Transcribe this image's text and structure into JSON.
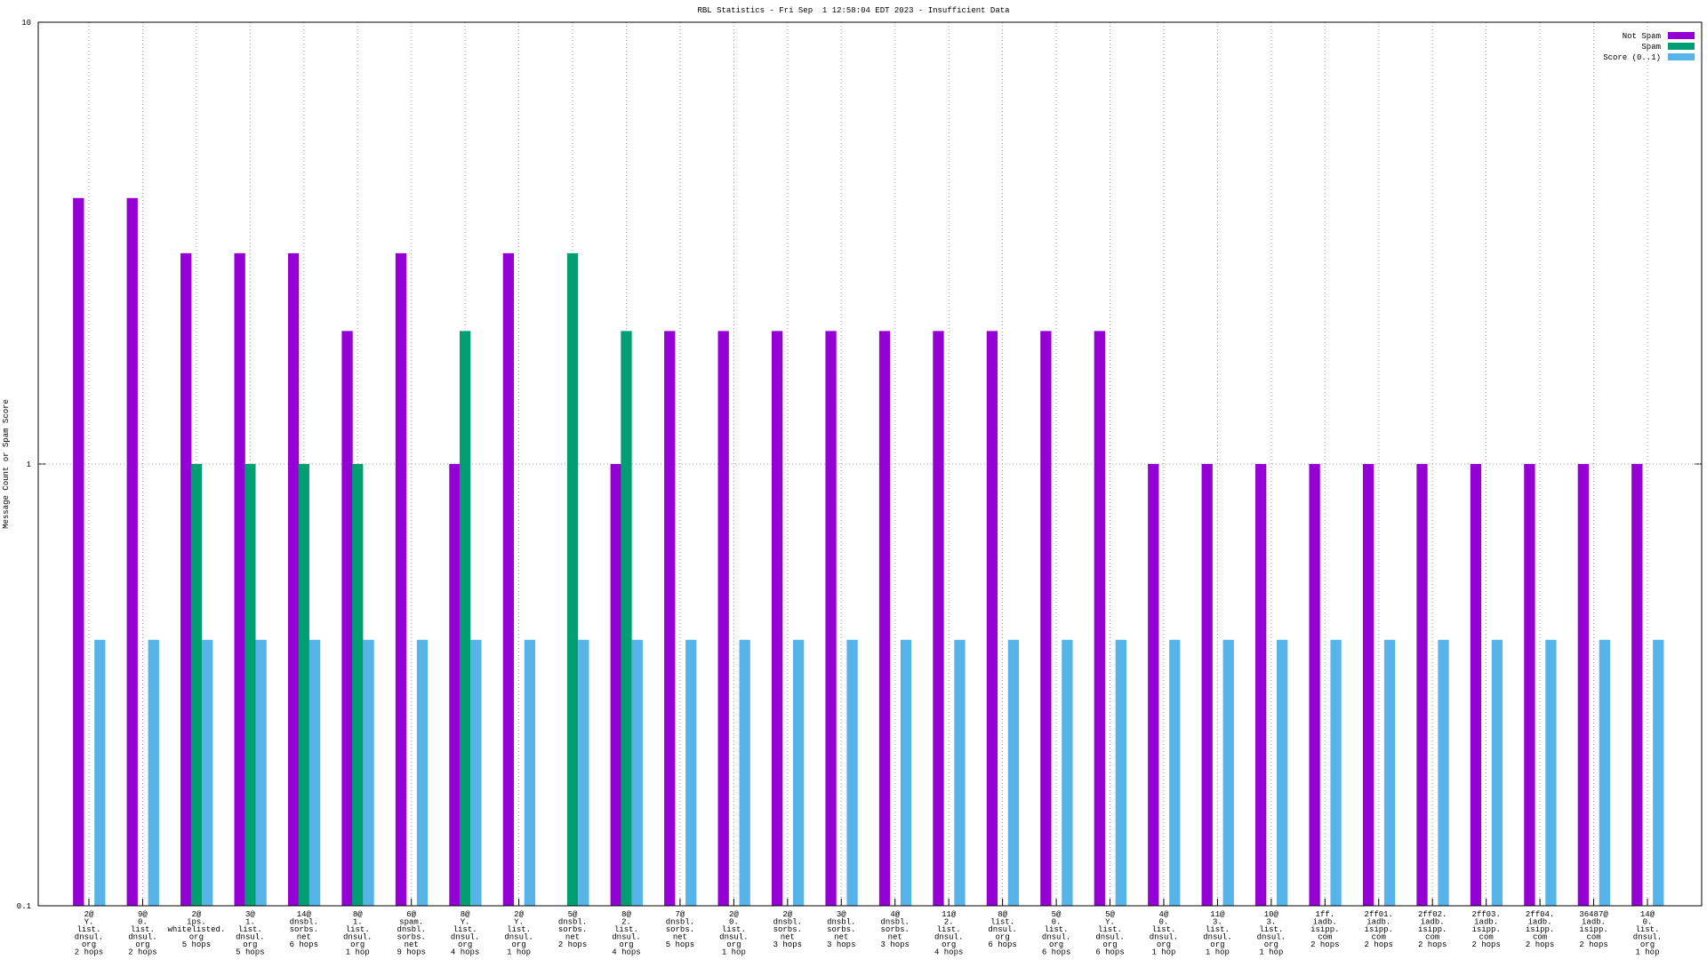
{
  "chart_data": {
    "type": "bar",
    "title": "RBL Statistics - Fri Sep  1 12:58:04 EDT 2023 - Insufficient Data",
    "y_label": "Message Count or Spam Score",
    "log_scale": true,
    "grid": true,
    "legend": "top-right",
    "ylim": [
      0.1,
      10
    ],
    "yticks": [
      0.1,
      1,
      10
    ],
    "categories": [
      [
        "2@",
        "Y.",
        "list.",
        "dnsul.",
        "org",
        "2 hops"
      ],
      [
        "9@",
        "0.",
        "list.",
        "dnsul.",
        "org",
        "2 hops"
      ],
      [
        "2@",
        "ips.",
        "whitelisted.",
        "org",
        "5 hops"
      ],
      [
        "3@",
        "1.",
        "list.",
        "dnsul.",
        "org",
        "5 hops"
      ],
      [
        "14@",
        "dnsbl.",
        "sorbs.",
        "net",
        "6 hops"
      ],
      [
        "8@",
        "1.",
        "list.",
        "dnsul.",
        "org",
        "1 hop"
      ],
      [
        "6@",
        "spam.",
        "dnsbl.",
        "sorbs.",
        "net",
        "9 hops"
      ],
      [
        "8@",
        "Y.",
        "list.",
        "dnsul.",
        "org",
        "4 hops"
      ],
      [
        "2@",
        "Y.",
        "list.",
        "dnsul.",
        "org",
        "1 hop"
      ],
      [
        "5@",
        "dnsbl.",
        "sorbs.",
        "net",
        "2 hops"
      ],
      [
        "8@",
        "2.",
        "list.",
        "dnsul.",
        "org",
        "4 hops"
      ],
      [
        "7@",
        "dnsbl.",
        "sorbs.",
        "net",
        "5 hops"
      ],
      [
        "2@",
        "0.",
        "list.",
        "dnsul.",
        "org",
        "1 hop"
      ],
      [
        "2@",
        "dnsbl.",
        "sorbs.",
        "net",
        "3 hops"
      ],
      [
        "3@",
        "dnsbl.",
        "sorbs.",
        "net",
        "3 hops"
      ],
      [
        "4@",
        "dnsbl.",
        "sorbs.",
        "net",
        "3 hops"
      ],
      [
        "11@",
        "2.",
        "list.",
        "dnsul.",
        "org",
        "4 hops"
      ],
      [
        "8@",
        "list.",
        "dnsul.",
        "org",
        "6 hops"
      ],
      [
        "5@",
        "0.",
        "list.",
        "dnsul.",
        "org",
        "6 hops"
      ],
      [
        "5@",
        "Y.",
        "list.",
        "dnsul.",
        "org",
        "6 hops"
      ],
      [
        "4@",
        "0.",
        "list.",
        "dnsul.",
        "org",
        "1 hop"
      ],
      [
        "11@",
        "3.",
        "list.",
        "dnsul.",
        "org",
        "1 hop"
      ],
      [
        "10@",
        "3.",
        "list.",
        "dnsul.",
        "org",
        "1 hop"
      ],
      [
        "1ff.",
        "iadb.",
        "isipp.",
        "com",
        "2 hops"
      ],
      [
        "2ff01.",
        "iadb.",
        "isipp.",
        "com",
        "2 hops"
      ],
      [
        "2ff02.",
        "iadb.",
        "isipp.",
        "com",
        "2 hops"
      ],
      [
        "2ff03.",
        "iadb.",
        "isipp.",
        "com",
        "2 hops"
      ],
      [
        "2ff04.",
        "iadb.",
        "isipp.",
        "com",
        "2 hops"
      ],
      [
        "36487@",
        "iadb.",
        "isipp.",
        "com",
        "2 hops"
      ],
      [
        "14@",
        "0.",
        "list.",
        "dnsul.",
        "org",
        "1 hop"
      ]
    ],
    "series": [
      {
        "name": "Not Spam",
        "color": "#9400d3",
        "values": [
          4,
          4,
          3,
          3,
          3,
          2,
          3,
          1,
          3,
          null,
          1,
          2,
          2,
          2,
          2,
          2,
          2,
          2,
          2,
          2,
          1,
          1,
          1,
          1,
          1,
          1,
          1,
          1,
          1,
          1
        ]
      },
      {
        "name": "Spam",
        "color": "#009e73",
        "values": [
          null,
          null,
          1,
          1,
          1,
          1,
          null,
          2,
          null,
          3,
          2,
          null,
          null,
          null,
          null,
          null,
          null,
          null,
          null,
          null,
          null,
          null,
          null,
          null,
          null,
          null,
          null,
          null,
          null,
          null
        ]
      },
      {
        "name": "Score (0..1)",
        "color": "#56b4e9",
        "values": [
          0.4,
          0.4,
          0.4,
          0.4,
          0.4,
          0.4,
          0.4,
          0.4,
          0.4,
          0.4,
          0.4,
          0.4,
          0.4,
          0.4,
          0.4,
          0.4,
          0.4,
          0.4,
          0.4,
          0.4,
          0.4,
          0.4,
          0.4,
          0.4,
          0.4,
          0.4,
          0.4,
          0.4,
          0.4,
          0.4
        ]
      }
    ]
  }
}
